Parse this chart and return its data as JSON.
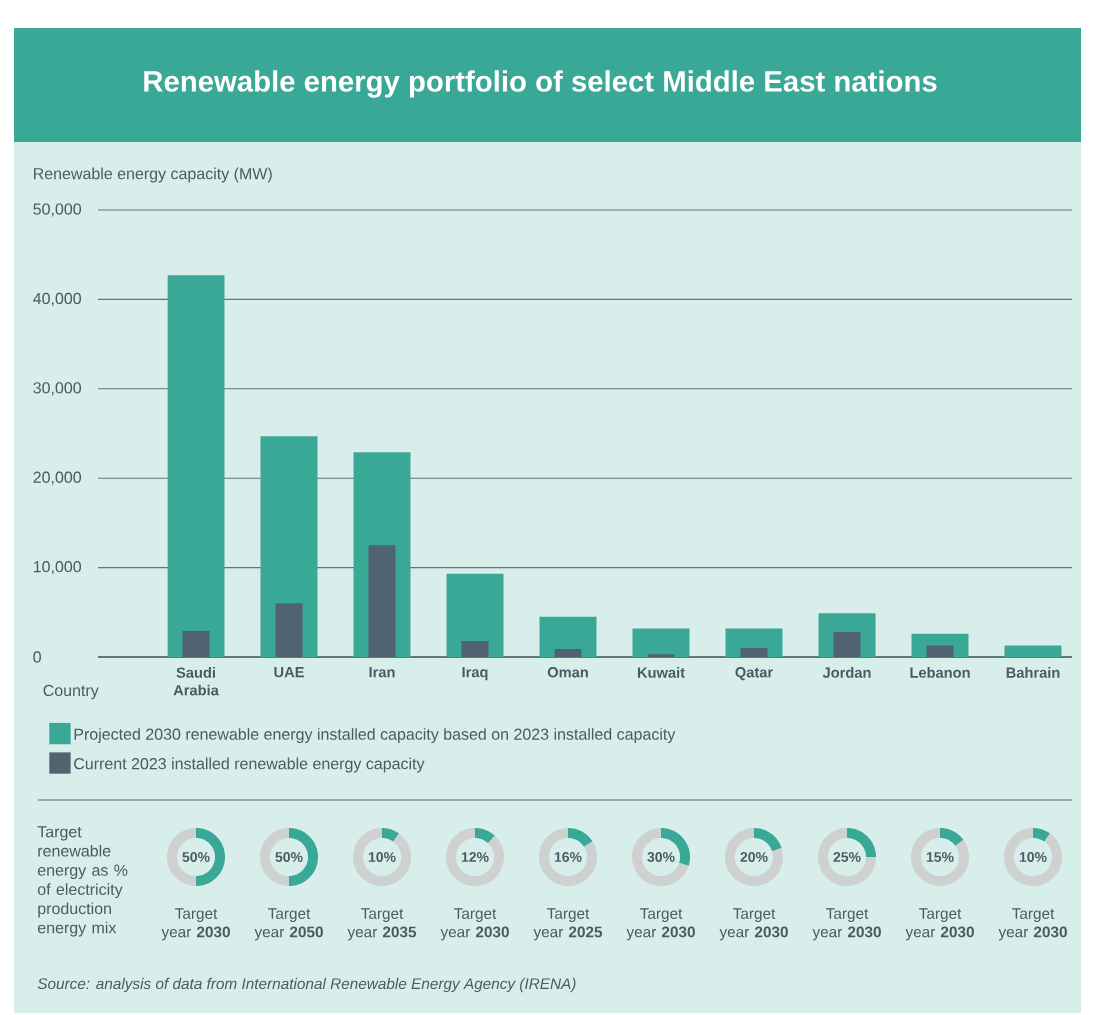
{
  "chart_data": [
    {
      "type": "bar",
      "title": "Renewable energy portfolio of select Middle East nations",
      "ylabel": "Renewable energy capacity (MW)",
      "xlabel": "Country",
      "categories": [
        "Saudi Arabia",
        "UAE",
        "Iran",
        "Iraq",
        "Oman",
        "Kuwait",
        "Qatar",
        "Jordan",
        "Lebanon",
        "Bahrain"
      ],
      "series": [
        {
          "name": "Projected 2030 renewable energy installed capacity based on 2023 installed capacity",
          "color": "#3aa897",
          "values": [
            42700,
            24700,
            22900,
            9300,
            4500,
            3200,
            3200,
            4900,
            2600,
            1300
          ]
        },
        {
          "name": "Current 2023 installed renewable energy capacity",
          "color": "#4f6470",
          "values": [
            2900,
            6000,
            12500,
            1800,
            900,
            300,
            1000,
            2800,
            1300,
            null
          ]
        }
      ],
      "ylim": [
        0,
        50000
      ],
      "yticks": [
        0,
        {
          "value": 10000,
          "label": "10,000"
        },
        {
          "value": 20000,
          "label": "20,000"
        },
        {
          "value": 30000,
          "label": "30,000"
        },
        {
          "value": 40000,
          "label": "40,000"
        },
        {
          "value": 50000,
          "label": "50,000"
        }
      ],
      "grid": "y",
      "legend": "bottom",
      "annotations": [
        "Target renewable energy as % of electricity production energy mix",
        "Source: analysis of data from International Renewable Energy Agency (IRENA)"
      ]
    },
    {
      "type": "donut",
      "categories": [
        null,
        null
      ],
      "values": [
        50,
        50
      ],
      "colors": [
        "#3aa897",
        "#cfd1d1"
      ],
      "annotations": [
        "50%"
      ],
      "xlabel": "Target year **2030**"
    },
    {
      "type": "donut",
      "categories": [
        null,
        null
      ],
      "values": [
        50,
        50
      ],
      "colors": [
        "#3aa897",
        "#cfd1d1"
      ],
      "annotations": [
        "50%"
      ],
      "xlabel": "Target year **2050**"
    },
    {
      "type": "donut",
      "categories": [
        null,
        null
      ],
      "values": [
        10,
        90
      ],
      "colors": [
        "#3aa897",
        "#cfd1d1"
      ],
      "annotations": [
        "10%"
      ],
      "xlabel": "Target year **2035**"
    },
    {
      "type": "donut",
      "categories": [
        null,
        null
      ],
      "values": [
        12,
        88
      ],
      "colors": [
        "#3aa897",
        "#cfd1d1"
      ],
      "annotations": [
        "12%"
      ],
      "xlabel": "Target year **2030**"
    },
    {
      "type": "donut",
      "categories": [
        null,
        null
      ],
      "values": [
        16,
        84
      ],
      "colors": [
        "#3aa897",
        "#cfd1d1"
      ],
      "annotations": [
        "16%"
      ],
      "xlabel": "Target year **2025**"
    },
    {
      "type": "donut",
      "categories": [
        null,
        null
      ],
      "values": [
        30,
        70
      ],
      "colors": [
        "#3aa897",
        "#cfd1d1"
      ],
      "annotations": [
        "30%"
      ],
      "xlabel": "Target year **2030**"
    },
    {
      "type": "donut",
      "categories": [
        null,
        null
      ],
      "values": [
        20,
        80
      ],
      "colors": [
        "#3aa897",
        "#cfd1d1"
      ],
      "annotations": [
        "20%"
      ],
      "xlabel": "Target year **2030**"
    },
    {
      "type": "donut",
      "categories": [
        null,
        null
      ],
      "values": [
        25,
        75
      ],
      "colors": [
        "#3aa897",
        "#cfd1d1"
      ],
      "annotations": [
        "25%"
      ],
      "xlabel": "Target year **2030**"
    },
    {
      "type": "donut",
      "categories": [
        null,
        null
      ],
      "values": [
        15,
        85
      ],
      "colors": [
        "#3aa897",
        "#cfd1d1"
      ],
      "annotations": [
        "15%"
      ],
      "xlabel": "Target year **2030**"
    },
    {
      "type": "donut",
      "categories": [
        null,
        null
      ],
      "values": [
        10,
        90
      ],
      "colors": [
        "#3aa897",
        "#cfd1d1"
      ],
      "annotations": [
        "10%"
      ],
      "xlabel": "Target year **2030**"
    }
  ]
}
